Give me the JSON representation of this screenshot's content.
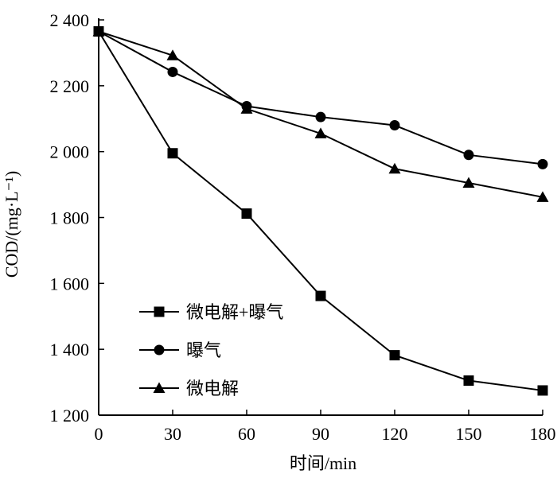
{
  "chart_data": {
    "type": "line",
    "title": "",
    "xlabel": "时间/min",
    "ylabel": "COD/(mg·L⁻¹)",
    "x": [
      0,
      30,
      60,
      90,
      120,
      150,
      180
    ],
    "xlim": [
      0,
      180
    ],
    "ylim": [
      1200,
      2400
    ],
    "xticks": [
      0,
      30,
      60,
      90,
      120,
      150,
      180
    ],
    "xtick_labels": [
      "0",
      "30",
      "60",
      "90",
      "120",
      "150",
      "180"
    ],
    "yticks": [
      1200,
      1400,
      1600,
      1800,
      2000,
      2200,
      2400
    ],
    "ytick_labels": [
      "1 200",
      "1 400",
      "1 600",
      "1 800",
      "2 000",
      "2 200",
      "2 400"
    ],
    "grid": false,
    "legend_position": "bottom-left",
    "series": [
      {
        "name": "微电解+曝气",
        "marker": "square",
        "values": [
          2365,
          1995,
          1812,
          1562,
          1382,
          1305,
          1275
        ]
      },
      {
        "name": "曝气",
        "marker": "circle",
        "values": [
          2365,
          2242,
          2138,
          2105,
          2080,
          1990,
          1962
        ]
      },
      {
        "name": "微电解",
        "marker": "triangle",
        "values": [
          2365,
          2292,
          2130,
          2055,
          1948,
          1905,
          1862
        ]
      }
    ],
    "colors": {
      "line": "#000000",
      "marker": "#000000",
      "axis": "#000000"
    }
  }
}
